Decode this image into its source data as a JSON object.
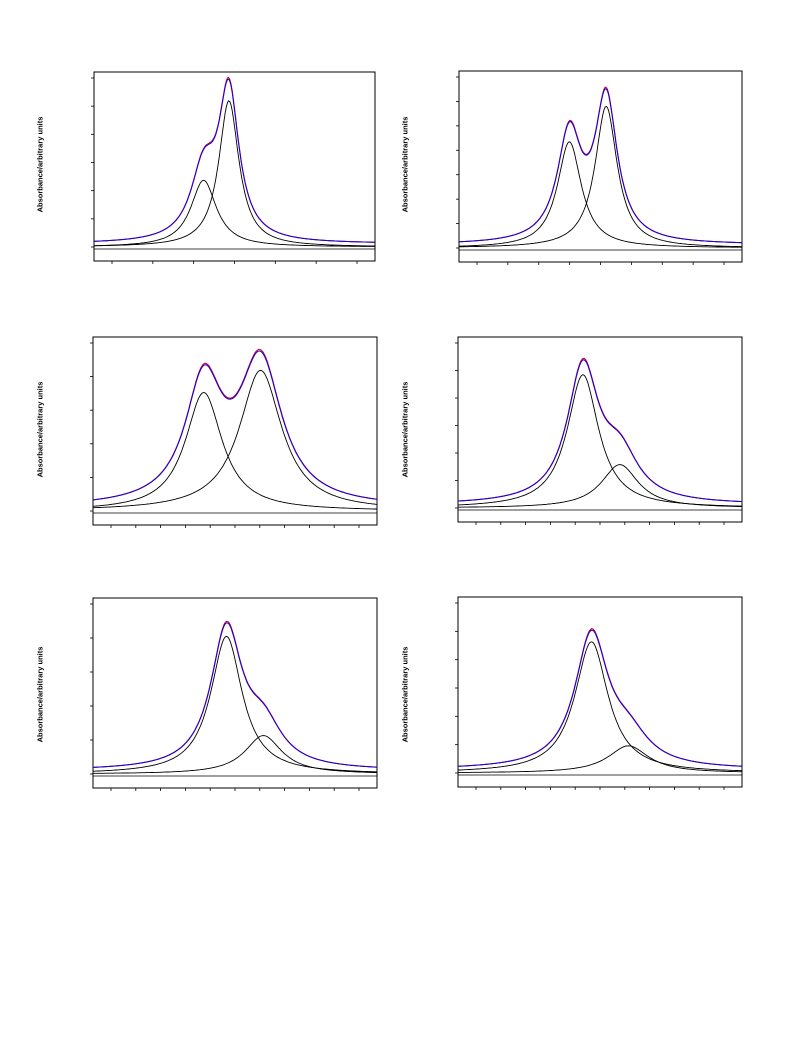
{
  "colors": {
    "fit": "#2200cc",
    "experimental": "#cc0022",
    "component": "#000000",
    "frame": "#000000"
  },
  "chart_data": [
    {
      "type": "line",
      "ylabel": "Absorbance/arbitrary units",
      "xlim": [
        0,
        10
      ],
      "ylim": [
        0,
        1
      ],
      "baseline": 0.02,
      "peaks": [
        {
          "center": 3.9,
          "height": 0.42,
          "width": 0.7
        },
        {
          "center": 4.8,
          "height": 0.92,
          "width": 0.55
        }
      ],
      "xticks": 7,
      "yticks": 7
    },
    {
      "type": "line",
      "ylabel": "Absorbance/arbitrary units",
      "xlim": [
        0,
        10
      ],
      "ylim": [
        0,
        1
      ],
      "baseline": 0.02,
      "peaks": [
        {
          "center": 3.9,
          "height": 0.66,
          "width": 0.65
        },
        {
          "center": 5.2,
          "height": 0.88,
          "width": 0.6
        }
      ],
      "xticks": 9,
      "yticks": 8
    },
    {
      "type": "line",
      "ylabel": "Absorbance/arbitrary units",
      "xlim": [
        0,
        10
      ],
      "ylim": [
        0,
        1
      ],
      "baseline": 0.02,
      "peaks": [
        {
          "center": 3.9,
          "height": 0.75,
          "width": 1.0
        },
        {
          "center": 5.9,
          "height": 0.89,
          "width": 1.15
        }
      ],
      "xticks": 11,
      "yticks": 6
    },
    {
      "type": "line",
      "ylabel": "Absorbance/arbitrary units",
      "xlim": [
        0,
        10
      ],
      "ylim": [
        0,
        1
      ],
      "baseline": 0.02,
      "peaks": [
        {
          "center": 4.4,
          "height": 0.86,
          "width": 0.85
        },
        {
          "center": 5.7,
          "height": 0.28,
          "width": 1.0
        }
      ],
      "xticks": 11,
      "yticks": 7
    },
    {
      "type": "line",
      "ylabel": "Absorbance/arbitrary units",
      "xlim": [
        0,
        10
      ],
      "ylim": [
        0,
        1
      ],
      "baseline": 0.02,
      "peaks": [
        {
          "center": 4.7,
          "height": 0.86,
          "width": 0.85
        },
        {
          "center": 6.0,
          "height": 0.24,
          "width": 1.0
        }
      ],
      "xticks": 11,
      "yticks": 6
    },
    {
      "type": "line",
      "ylabel": "Absorbance/arbitrary units",
      "xlim": [
        0,
        10
      ],
      "ylim": [
        0,
        1
      ],
      "baseline": 0.02,
      "peaks": [
        {
          "center": 4.7,
          "height": 0.82,
          "width": 0.9
        },
        {
          "center": 6.0,
          "height": 0.17,
          "width": 1.1
        }
      ],
      "xticks": 11,
      "yticks": 7
    }
  ]
}
